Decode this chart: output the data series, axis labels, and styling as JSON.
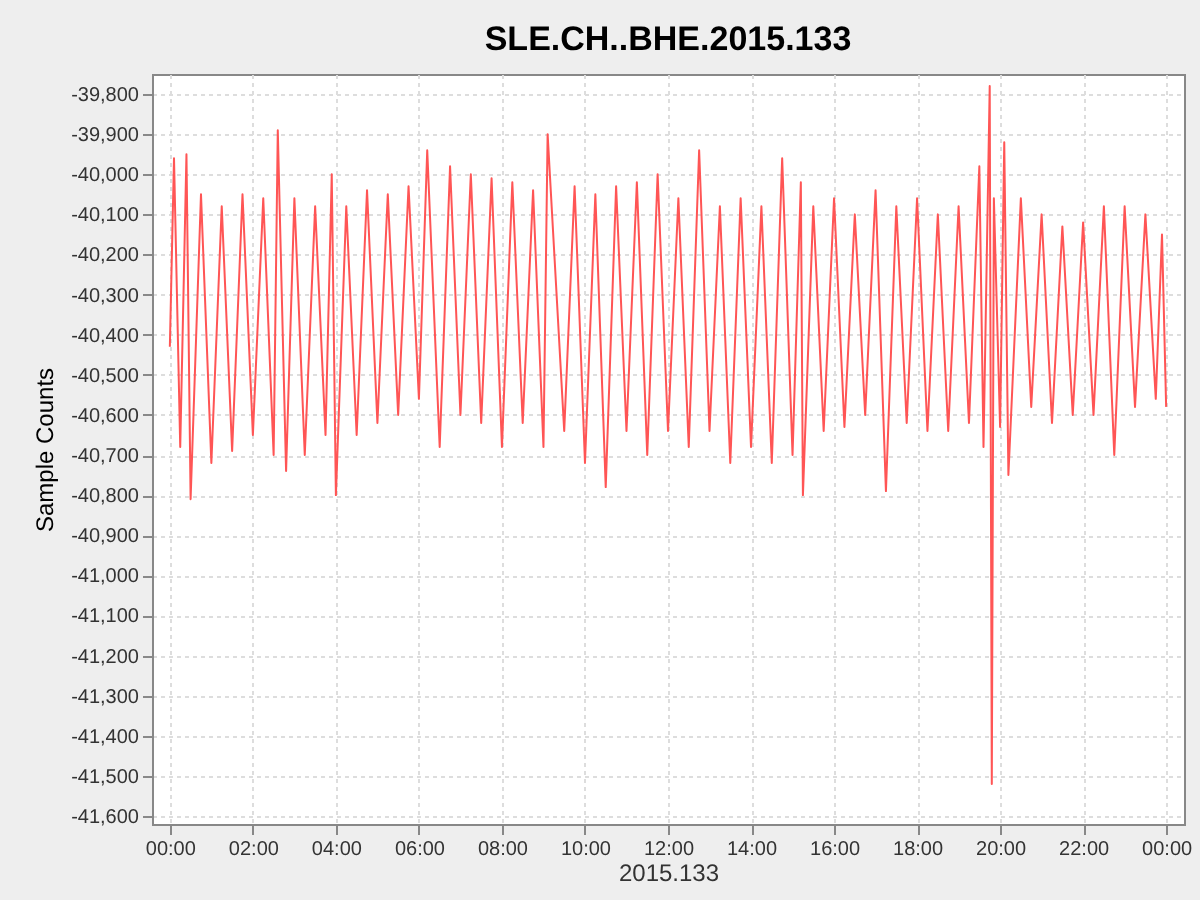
{
  "chart_data": {
    "type": "line",
    "title": "SLE.CH..BHE.2015.133",
    "xlabel": "2015.133",
    "ylabel": "Sample Counts",
    "x": [
      0,
      0.1,
      0.25,
      0.4,
      0.5,
      0.75,
      1,
      1.25,
      1.5,
      1.75,
      2,
      2.25,
      2.5,
      2.6,
      2.8,
      3,
      3.25,
      3.5,
      3.75,
      3.9,
      4,
      4.25,
      4.5,
      4.75,
      5,
      5.25,
      5.5,
      5.75,
      6,
      6.2,
      6.5,
      6.75,
      7,
      7.25,
      7.5,
      7.75,
      8,
      8.25,
      8.5,
      8.75,
      9,
      9.1,
      9.5,
      9.75,
      10,
      10.25,
      10.5,
      10.75,
      11,
      11.25,
      11.5,
      11.75,
      12,
      12.25,
      12.5,
      12.75,
      13,
      13.25,
      13.5,
      13.75,
      14,
      14.25,
      14.5,
      14.75,
      15,
      15.2,
      15.25,
      15.5,
      15.75,
      16,
      16.25,
      16.5,
      16.75,
      17,
      17.25,
      17.5,
      17.75,
      18,
      18.25,
      18.5,
      18.75,
      19,
      19.25,
      19.5,
      19.6,
      19.75,
      19.8,
      19.85,
      20,
      20.1,
      20.2,
      20.5,
      20.75,
      21,
      21.25,
      21.5,
      21.75,
      22,
      22.25,
      22.5,
      22.75,
      23,
      23.25,
      23.5,
      23.75,
      23.9,
      24
    ],
    "series": [
      {
        "color": "#ff5555",
        "values": [
          -40430,
          -39960,
          -40680,
          -39950,
          -40810,
          -40050,
          -40720,
          -40080,
          -40690,
          -40050,
          -40650,
          -40060,
          -40700,
          -39890,
          -40740,
          -40060,
          -40700,
          -40080,
          -40650,
          -40000,
          -40800,
          -40080,
          -40650,
          -40040,
          -40620,
          -40050,
          -40600,
          -40030,
          -40560,
          -39940,
          -40680,
          -39980,
          -40600,
          -40000,
          -40620,
          -40010,
          -40680,
          -40020,
          -40620,
          -40040,
          -40680,
          -39900,
          -40640,
          -40030,
          -40720,
          -40050,
          -40780,
          -40030,
          -40640,
          -40020,
          -40700,
          -40000,
          -40640,
          -40060,
          -40680,
          -39940,
          -40640,
          -40080,
          -40720,
          -40060,
          -40680,
          -40080,
          -40720,
          -39960,
          -40700,
          -40020,
          -40800,
          -40080,
          -40640,
          -40060,
          -40630,
          -40100,
          -40600,
          -40040,
          -40790,
          -40080,
          -40620,
          -40060,
          -40640,
          -40100,
          -40640,
          -40080,
          -40620,
          -39980,
          -40680,
          -39780,
          -41520,
          -40060,
          -40630,
          -39920,
          -40750,
          -40060,
          -40580,
          -40100,
          -40620,
          -40130,
          -40600,
          -40120,
          -40600,
          -40080,
          -40700,
          -40080,
          -40580,
          -40100,
          -40560,
          -40150,
          -40580
        ]
      }
    ],
    "xlim": [
      -0.43,
      24.43
    ],
    "xticks": [
      {
        "value": 0,
        "label": "00:00"
      },
      {
        "value": 2,
        "label": "02:00"
      },
      {
        "value": 4,
        "label": "04:00"
      },
      {
        "value": 6,
        "label": "06:00"
      },
      {
        "value": 8,
        "label": "08:00"
      },
      {
        "value": 10,
        "label": "10:00"
      },
      {
        "value": 12,
        "label": "12:00"
      },
      {
        "value": 14,
        "label": "14:00"
      },
      {
        "value": 16,
        "label": "16:00"
      },
      {
        "value": 18,
        "label": "18:00"
      },
      {
        "value": 20,
        "label": "20:00"
      },
      {
        "value": 22,
        "label": "22:00"
      },
      {
        "value": 24,
        "label": "00:00"
      }
    ],
    "ylim": [
      -41620,
      -39750
    ],
    "yticks": [
      {
        "value": -41600,
        "label": "-41,600"
      },
      {
        "value": -41500,
        "label": "-41,500"
      },
      {
        "value": -41400,
        "label": "-41,400"
      },
      {
        "value": -41300,
        "label": "-41,300"
      },
      {
        "value": -41200,
        "label": "-41,200"
      },
      {
        "value": -41100,
        "label": "-41,100"
      },
      {
        "value": -41000,
        "label": "-41,000"
      },
      {
        "value": -40900,
        "label": "-40,900"
      },
      {
        "value": -40800,
        "label": "-40,800"
      },
      {
        "value": -40700,
        "label": "-40,700"
      },
      {
        "value": -40600,
        "label": "-40,600"
      },
      {
        "value": -40500,
        "label": "-40,500"
      },
      {
        "value": -40400,
        "label": "-40,400"
      },
      {
        "value": -40300,
        "label": "-40,300"
      },
      {
        "value": -40200,
        "label": "-40,200"
      },
      {
        "value": -40100,
        "label": "-40,100"
      },
      {
        "value": -40000,
        "label": "-40,000"
      },
      {
        "value": -39900,
        "label": "-39,900"
      },
      {
        "value": -39800,
        "label": "-39,800"
      }
    ],
    "grid": true,
    "legend": false,
    "marker": "none",
    "line_style": "solid"
  }
}
